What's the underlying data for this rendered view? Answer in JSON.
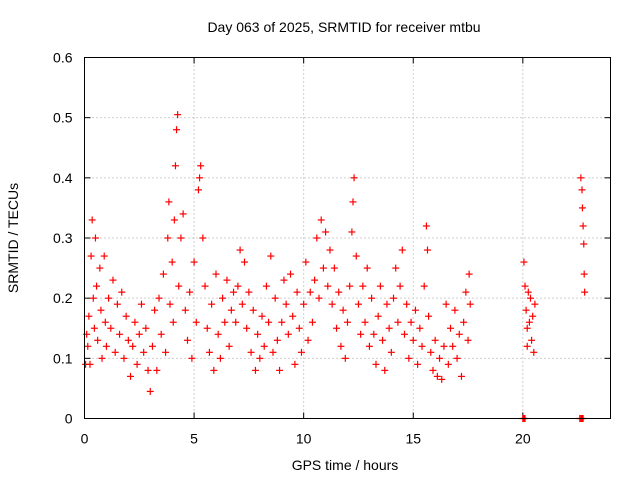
{
  "chart_data": {
    "type": "scatter",
    "title": "Day 063 of 2025, SRMTID for receiver mtbu",
    "xlabel": "GPS time / hours",
    "ylabel": "SRMTID / TECUs",
    "xlim": [
      0,
      24
    ],
    "ylim": [
      0,
      0.6
    ],
    "xticks": [
      0,
      5,
      10,
      15,
      20
    ],
    "yticks": [
      0,
      0.1,
      0.2,
      0.3,
      0.4,
      0.5,
      0.6
    ],
    "x_tick_labels": [
      "0",
      "5",
      "10",
      "15",
      "20"
    ],
    "y_tick_labels": [
      "0",
      "0.1",
      "0.2",
      "0.3",
      "0.4",
      "0.5",
      "0.6"
    ],
    "grid": true,
    "marker": "+",
    "color": "#ff0000",
    "series": [
      {
        "name": "SRMTID",
        "points": [
          [
            0.05,
            0.09
          ],
          [
            0.1,
            0.14
          ],
          [
            0.15,
            0.12
          ],
          [
            0.2,
            0.17
          ],
          [
            0.25,
            0.09
          ],
          [
            0.3,
            0.27
          ],
          [
            0.35,
            0.33
          ],
          [
            0.4,
            0.2
          ],
          [
            0.45,
            0.15
          ],
          [
            0.5,
            0.3
          ],
          [
            0.55,
            0.22
          ],
          [
            0.6,
            0.13
          ],
          [
            0.7,
            0.25
          ],
          [
            0.75,
            0.18
          ],
          [
            0.8,
            0.1
          ],
          [
            0.9,
            0.27
          ],
          [
            0.95,
            0.16
          ],
          [
            1.0,
            0.12
          ],
          [
            1.1,
            0.2
          ],
          [
            1.2,
            0.15
          ],
          [
            1.3,
            0.23
          ],
          [
            1.4,
            0.11
          ],
          [
            1.5,
            0.19
          ],
          [
            1.6,
            0.14
          ],
          [
            1.7,
            0.21
          ],
          [
            1.8,
            0.1
          ],
          [
            1.9,
            0.17
          ],
          [
            2.0,
            0.13
          ],
          [
            2.1,
            0.07
          ],
          [
            2.2,
            0.12
          ],
          [
            2.3,
            0.16
          ],
          [
            2.4,
            0.09
          ],
          [
            2.5,
            0.14
          ],
          [
            2.6,
            0.19
          ],
          [
            2.7,
            0.11
          ],
          [
            2.8,
            0.15
          ],
          [
            2.9,
            0.08
          ],
          [
            3.0,
            0.045
          ],
          [
            3.1,
            0.12
          ],
          [
            3.2,
            0.18
          ],
          [
            3.3,
            0.08
          ],
          [
            3.4,
            0.2
          ],
          [
            3.5,
            0.14
          ],
          [
            3.6,
            0.24
          ],
          [
            3.7,
            0.11
          ],
          [
            3.8,
            0.3
          ],
          [
            3.85,
            0.36
          ],
          [
            3.9,
            0.19
          ],
          [
            4.0,
            0.26
          ],
          [
            4.05,
            0.16
          ],
          [
            4.1,
            0.33
          ],
          [
            4.15,
            0.42
          ],
          [
            4.2,
            0.48
          ],
          [
            4.25,
            0.505
          ],
          [
            4.3,
            0.22
          ],
          [
            4.4,
            0.3
          ],
          [
            4.5,
            0.34
          ],
          [
            4.6,
            0.18
          ],
          [
            4.7,
            0.13
          ],
          [
            4.8,
            0.21
          ],
          [
            4.9,
            0.1
          ],
          [
            5.0,
            0.26
          ],
          [
            5.1,
            0.16
          ],
          [
            5.2,
            0.38
          ],
          [
            5.25,
            0.4
          ],
          [
            5.3,
            0.42
          ],
          [
            5.4,
            0.3
          ],
          [
            5.5,
            0.22
          ],
          [
            5.6,
            0.15
          ],
          [
            5.7,
            0.11
          ],
          [
            5.8,
            0.19
          ],
          [
            5.9,
            0.08
          ],
          [
            6.0,
            0.24
          ],
          [
            6.1,
            0.14
          ],
          [
            6.2,
            0.1
          ],
          [
            6.3,
            0.2
          ],
          [
            6.4,
            0.16
          ],
          [
            6.5,
            0.23
          ],
          [
            6.6,
            0.12
          ],
          [
            6.7,
            0.18
          ],
          [
            6.8,
            0.21
          ],
          [
            6.9,
            0.16
          ],
          [
            7.0,
            0.22
          ],
          [
            7.1,
            0.28
          ],
          [
            7.2,
            0.19
          ],
          [
            7.3,
            0.26
          ],
          [
            7.4,
            0.15
          ],
          [
            7.5,
            0.21
          ],
          [
            7.6,
            0.11
          ],
          [
            7.7,
            0.18
          ],
          [
            7.8,
            0.08
          ],
          [
            7.9,
            0.14
          ],
          [
            8.0,
            0.1
          ],
          [
            8.1,
            0.17
          ],
          [
            8.2,
            0.12
          ],
          [
            8.3,
            0.22
          ],
          [
            8.4,
            0.16
          ],
          [
            8.5,
            0.27
          ],
          [
            8.6,
            0.11
          ],
          [
            8.7,
            0.2
          ],
          [
            8.8,
            0.13
          ],
          [
            8.9,
            0.08
          ],
          [
            9.0,
            0.16
          ],
          [
            9.1,
            0.23
          ],
          [
            9.2,
            0.19
          ],
          [
            9.3,
            0.14
          ],
          [
            9.4,
            0.24
          ],
          [
            9.5,
            0.17
          ],
          [
            9.6,
            0.09
          ],
          [
            9.7,
            0.21
          ],
          [
            9.8,
            0.15
          ],
          [
            9.9,
            0.11
          ],
          [
            10.0,
            0.19
          ],
          [
            10.1,
            0.26
          ],
          [
            10.2,
            0.13
          ],
          [
            10.3,
            0.21
          ],
          [
            10.4,
            0.16
          ],
          [
            10.5,
            0.23
          ],
          [
            10.6,
            0.3
          ],
          [
            10.7,
            0.2
          ],
          [
            10.8,
            0.33
          ],
          [
            10.9,
            0.25
          ],
          [
            11.0,
            0.31
          ],
          [
            11.1,
            0.22
          ],
          [
            11.2,
            0.28
          ],
          [
            11.3,
            0.19
          ],
          [
            11.4,
            0.25
          ],
          [
            11.5,
            0.15
          ],
          [
            11.6,
            0.21
          ],
          [
            11.7,
            0.12
          ],
          [
            11.8,
            0.18
          ],
          [
            11.9,
            0.1
          ],
          [
            12.0,
            0.16
          ],
          [
            12.1,
            0.22
          ],
          [
            12.2,
            0.31
          ],
          [
            12.25,
            0.36
          ],
          [
            12.3,
            0.4
          ],
          [
            12.4,
            0.27
          ],
          [
            12.5,
            0.19
          ],
          [
            12.6,
            0.14
          ],
          [
            12.7,
            0.22
          ],
          [
            12.8,
            0.16
          ],
          [
            12.9,
            0.25
          ],
          [
            13.0,
            0.12
          ],
          [
            13.1,
            0.2
          ],
          [
            13.2,
            0.14
          ],
          [
            13.3,
            0.09
          ],
          [
            13.4,
            0.17
          ],
          [
            13.5,
            0.22
          ],
          [
            13.6,
            0.13
          ],
          [
            13.7,
            0.08
          ],
          [
            13.8,
            0.19
          ],
          [
            13.9,
            0.15
          ],
          [
            14.0,
            0.11
          ],
          [
            14.1,
            0.2
          ],
          [
            14.2,
            0.25
          ],
          [
            14.3,
            0.16
          ],
          [
            14.4,
            0.22
          ],
          [
            14.5,
            0.28
          ],
          [
            14.6,
            0.14
          ],
          [
            14.7,
            0.19
          ],
          [
            14.8,
            0.1
          ],
          [
            14.9,
            0.16
          ],
          [
            15.0,
            0.13
          ],
          [
            15.1,
            0.18
          ],
          [
            15.2,
            0.09
          ],
          [
            15.3,
            0.15
          ],
          [
            15.4,
            0.12
          ],
          [
            15.5,
            0.22
          ],
          [
            15.6,
            0.32
          ],
          [
            15.65,
            0.28
          ],
          [
            15.7,
            0.17
          ],
          [
            15.8,
            0.11
          ],
          [
            15.9,
            0.08
          ],
          [
            16.0,
            0.13
          ],
          [
            16.1,
            0.07
          ],
          [
            16.2,
            0.1
          ],
          [
            16.3,
            0.065
          ],
          [
            16.4,
            0.12
          ],
          [
            16.5,
            0.19
          ],
          [
            16.6,
            0.09
          ],
          [
            16.7,
            0.15
          ],
          [
            16.8,
            0.12
          ],
          [
            16.9,
            0.18
          ],
          [
            17.0,
            0.1
          ],
          [
            17.1,
            0.14
          ],
          [
            17.2,
            0.07
          ],
          [
            17.3,
            0.16
          ],
          [
            17.4,
            0.21
          ],
          [
            17.5,
            0.13
          ],
          [
            17.55,
            0.24
          ],
          [
            17.6,
            0.19
          ],
          [
            20.05,
            0.26
          ],
          [
            20.1,
            0.22
          ],
          [
            20.15,
            0.18
          ],
          [
            20.2,
            0.15
          ],
          [
            20.2,
            0.12
          ],
          [
            20.25,
            0.21
          ],
          [
            20.3,
            0.16
          ],
          [
            20.35,
            0.2
          ],
          [
            20.4,
            0.13
          ],
          [
            20.45,
            0.17
          ],
          [
            20.5,
            0.11
          ],
          [
            20.55,
            0.19
          ],
          [
            22.65,
            0.4
          ],
          [
            22.7,
            0.38
          ],
          [
            22.72,
            0.35
          ],
          [
            22.75,
            0.32
          ],
          [
            22.78,
            0.29
          ],
          [
            22.8,
            0.24
          ],
          [
            22.82,
            0.21
          ],
          [
            20.0,
            0.0
          ],
          [
            20.05,
            0.0
          ],
          [
            20.1,
            0.0
          ],
          [
            22.6,
            0.0
          ],
          [
            22.65,
            0.0
          ],
          [
            22.7,
            0.0
          ],
          [
            22.75,
            0.0
          ]
        ]
      }
    ]
  }
}
